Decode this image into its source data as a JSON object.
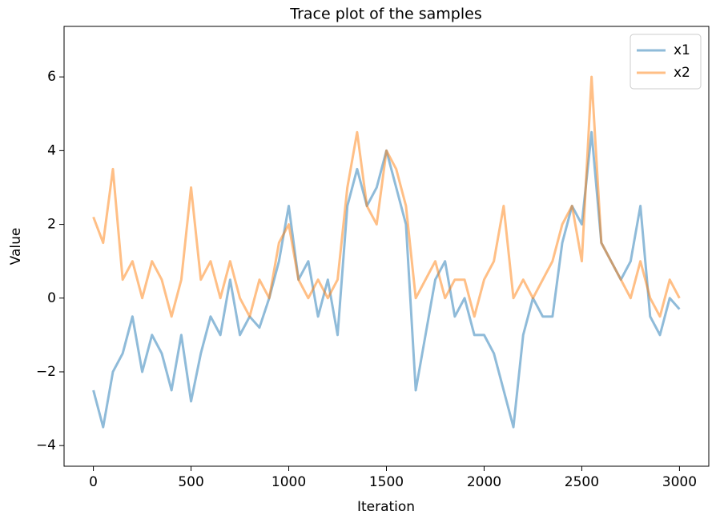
{
  "chart_data": {
    "type": "line",
    "title": "Trace plot of the samples",
    "x_label": "Iteration",
    "y_label": "Value",
    "x": [
      0,
      50,
      100,
      150,
      200,
      250,
      300,
      350,
      400,
      450,
      500,
      550,
      600,
      650,
      700,
      750,
      800,
      850,
      900,
      950,
      1000,
      1050,
      1100,
      1150,
      1200,
      1250,
      1300,
      1350,
      1400,
      1450,
      1500,
      1550,
      1600,
      1650,
      1700,
      1750,
      1800,
      1850,
      1900,
      1950,
      2000,
      2050,
      2100,
      2150,
      2200,
      2250,
      2300,
      2350,
      2400,
      2450,
      2500,
      2550,
      2600,
      2650,
      2700,
      2750,
      2800,
      2850,
      2900,
      2950,
      3000
    ],
    "series": [
      {
        "name": "x1",
        "color": "#1f77b4",
        "values": [
          -2.5,
          -3.5,
          -2.0,
          -1.5,
          -0.5,
          -2.0,
          -1.0,
          -1.5,
          -2.5,
          -1.0,
          -2.8,
          -1.5,
          -0.5,
          -1.0,
          0.5,
          -1.0,
          -0.5,
          -0.8,
          0.0,
          1.0,
          2.5,
          0.5,
          1.0,
          -0.5,
          0.5,
          -1.0,
          2.5,
          3.5,
          2.5,
          3.0,
          4.0,
          3.0,
          2.0,
          -2.5,
          -1.0,
          0.5,
          1.0,
          -0.5,
          0.0,
          -1.0,
          -1.0,
          -1.5,
          -2.5,
          -3.5,
          -1.0,
          0.0,
          -0.5,
          -0.5,
          1.5,
          2.5,
          2.0,
          4.5,
          1.5,
          1.0,
          0.5,
          1.0,
          2.5,
          -0.5,
          -1.0,
          0.0,
          -0.3
        ]
      },
      {
        "name": "x2",
        "color": "#ff7f0e",
        "values": [
          2.2,
          1.5,
          3.5,
          0.5,
          1.0,
          0.0,
          1.0,
          0.5,
          -0.5,
          0.5,
          3.0,
          0.5,
          1.0,
          0.0,
          1.0,
          0.0,
          -0.5,
          0.5,
          0.0,
          1.5,
          2.0,
          0.5,
          0.0,
          0.5,
          0.0,
          0.5,
          3.0,
          4.5,
          2.5,
          2.0,
          4.0,
          3.5,
          2.5,
          0.0,
          0.5,
          1.0,
          0.0,
          0.5,
          0.5,
          -0.5,
          0.5,
          1.0,
          2.5,
          0.0,
          0.5,
          0.0,
          0.5,
          1.0,
          2.0,
          2.5,
          1.0,
          6.0,
          1.5,
          1.0,
          0.5,
          0.0,
          1.0,
          0.0,
          -0.5,
          0.5,
          0.0
        ]
      }
    ],
    "xlim": [
      -150,
      3150
    ],
    "ylim": [
      -4.56,
      7.37
    ],
    "xticks": [
      0,
      500,
      1000,
      1500,
      2000,
      2500,
      3000
    ],
    "yticks": [
      {
        "value": -4,
        "label": "−4"
      },
      {
        "value": -2,
        "label": "−2"
      },
      0,
      2,
      4,
      6
    ],
    "legend": "upper right"
  }
}
